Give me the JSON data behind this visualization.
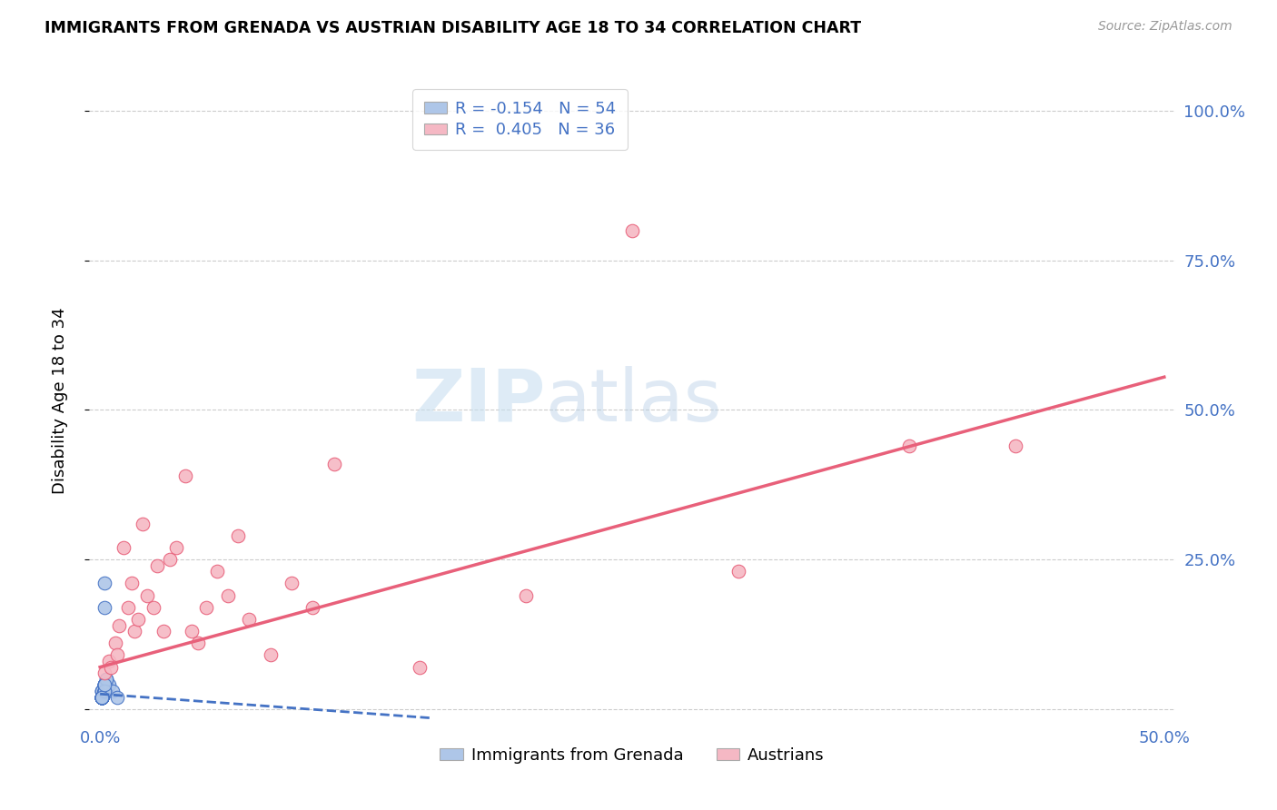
{
  "title": "IMMIGRANTS FROM GRENADA VS AUSTRIAN DISABILITY AGE 18 TO 34 CORRELATION CHART",
  "source": "Source: ZipAtlas.com",
  "ylabel": "Disability Age 18 to 34",
  "xlim": [
    -0.005,
    0.505
  ],
  "ylim": [
    -0.02,
    1.05
  ],
  "ytick_positions": [
    0.0,
    0.25,
    0.5,
    0.75,
    1.0
  ],
  "ytick_labels_right": [
    "",
    "25.0%",
    "50.0%",
    "75.0%",
    "100.0%"
  ],
  "blue_color": "#aec6e8",
  "pink_color": "#f5b8c4",
  "blue_line_color": "#4472c4",
  "pink_line_color": "#e8607a",
  "watermark_zip": "ZIP",
  "watermark_atlas": "atlas",
  "blue_scatter_x": [
    0.001,
    0.002,
    0.001,
    0.001,
    0.002,
    0.001,
    0.002,
    0.001,
    0.002,
    0.001,
    0.001,
    0.002,
    0.001,
    0.002,
    0.001,
    0.003,
    0.002,
    0.001,
    0.002,
    0.001,
    0.002,
    0.001,
    0.002,
    0.001,
    0.002,
    0.001,
    0.003,
    0.001,
    0.002,
    0.001,
    0.002,
    0.001,
    0.002,
    0.001,
    0.003,
    0.001,
    0.002,
    0.001,
    0.004,
    0.001,
    0.002,
    0.001,
    0.006,
    0.001,
    0.002,
    0.008,
    0.001,
    0.002,
    0.001,
    0.003,
    0.001,
    0.002,
    0.001,
    0.002
  ],
  "blue_scatter_y": [
    0.03,
    0.04,
    0.02,
    0.03,
    0.03,
    0.02,
    0.04,
    0.02,
    0.03,
    0.02,
    0.03,
    0.04,
    0.02,
    0.03,
    0.02,
    0.04,
    0.03,
    0.02,
    0.03,
    0.02,
    0.04,
    0.02,
    0.03,
    0.02,
    0.04,
    0.02,
    0.03,
    0.02,
    0.04,
    0.02,
    0.03,
    0.02,
    0.04,
    0.02,
    0.05,
    0.02,
    0.03,
    0.02,
    0.04,
    0.02,
    0.21,
    0.02,
    0.03,
    0.02,
    0.17,
    0.02,
    0.02,
    0.03,
    0.02,
    0.05,
    0.02,
    0.03,
    0.02,
    0.04
  ],
  "pink_scatter_x": [
    0.002,
    0.004,
    0.005,
    0.007,
    0.008,
    0.009,
    0.011,
    0.013,
    0.015,
    0.016,
    0.018,
    0.02,
    0.022,
    0.025,
    0.027,
    0.03,
    0.033,
    0.036,
    0.04,
    0.043,
    0.046,
    0.05,
    0.055,
    0.06,
    0.065,
    0.07,
    0.08,
    0.09,
    0.1,
    0.11,
    0.15,
    0.2,
    0.25,
    0.3,
    0.38,
    0.43
  ],
  "pink_scatter_y": [
    0.06,
    0.08,
    0.07,
    0.11,
    0.09,
    0.14,
    0.27,
    0.17,
    0.21,
    0.13,
    0.15,
    0.31,
    0.19,
    0.17,
    0.24,
    0.13,
    0.25,
    0.27,
    0.39,
    0.13,
    0.11,
    0.17,
    0.23,
    0.19,
    0.29,
    0.15,
    0.09,
    0.21,
    0.17,
    0.41,
    0.07,
    0.19,
    0.8,
    0.23,
    0.44,
    0.44
  ],
  "blue_line_x": [
    0.0,
    0.155
  ],
  "blue_line_y": [
    0.025,
    -0.015
  ],
  "pink_line_x": [
    0.0,
    0.5
  ],
  "pink_line_y": [
    0.07,
    0.555
  ]
}
